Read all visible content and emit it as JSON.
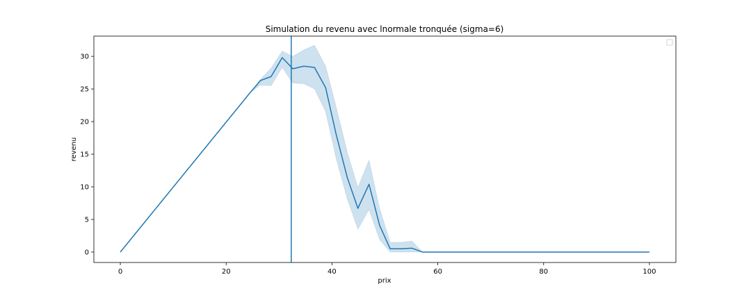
{
  "chart_data": {
    "type": "line",
    "title": "Simulation du revenu avec lnormale tronquée (sigma=6)",
    "xlabel": "prix",
    "ylabel": "revenu",
    "xlim": [
      -5,
      105
    ],
    "ylim": [
      -1.6,
      33.1
    ],
    "xticks": [
      "0",
      "20",
      "40",
      "60",
      "80",
      "100"
    ],
    "yticks": [
      "0",
      "5",
      "10",
      "15",
      "20",
      "25",
      "30"
    ],
    "grid": false,
    "legend": "top-right (empty)",
    "vline_x": 32.3,
    "colors": {
      "line": "#1f77b4",
      "band": "#1f77b4"
    },
    "series": [
      {
        "x": [
          0,
          24.5,
          26.5,
          28.5,
          30.6,
          32.6,
          34.7,
          36.7,
          38.8,
          40.8,
          42.9,
          44.9,
          47.0,
          49.0,
          51.0,
          53.1,
          55.1,
          57.1,
          100
        ],
        "y": [
          0.0,
          24.4,
          26.3,
          26.9,
          29.8,
          28.1,
          28.5,
          28.3,
          25.2,
          18.0,
          11.4,
          6.7,
          10.4,
          4.1,
          0.5,
          0.5,
          0.6,
          0.0,
          0.0
        ],
        "lower": [
          0.0,
          24.4,
          25.6,
          25.5,
          28.3,
          25.9,
          25.8,
          25.0,
          21.5,
          14.3,
          8.1,
          3.5,
          6.5,
          1.9,
          0.0,
          0.0,
          0.0,
          0.0,
          0.0
        ],
        "upper": [
          0.0,
          24.4,
          26.5,
          28.2,
          30.8,
          30.0,
          31.0,
          31.7,
          28.5,
          22.2,
          15.3,
          9.9,
          14.1,
          6.7,
          1.5,
          1.5,
          1.7,
          0.0,
          0.0
        ]
      }
    ]
  }
}
